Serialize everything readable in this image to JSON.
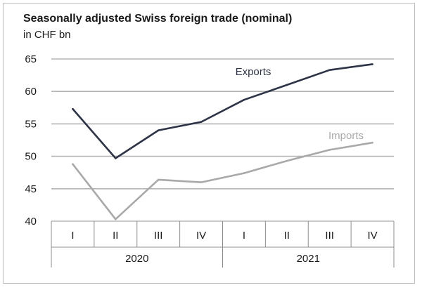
{
  "chart_data": {
    "type": "line",
    "title": "Seasonally adjusted Swiss foreign trade (nominal)",
    "subtitle": "in CHF bn",
    "xlabel": "",
    "ylabel": "",
    "ylim": [
      40,
      65
    ],
    "yticks": [
      40,
      45,
      50,
      55,
      60,
      65
    ],
    "categories": [
      "I",
      "II",
      "III",
      "IV",
      "I",
      "II",
      "III",
      "IV"
    ],
    "groups": [
      {
        "label": "2020",
        "span": 4
      },
      {
        "label": "2021",
        "span": 4
      }
    ],
    "series": [
      {
        "name": "Exports",
        "color": "#2e3447",
        "values": [
          57.3,
          49.7,
          54.0,
          55.3,
          58.7,
          61.0,
          63.3,
          64.2
        ]
      },
      {
        "name": "Imports",
        "color": "#a9a9a9",
        "values": [
          48.8,
          40.3,
          46.4,
          46.0,
          47.4,
          49.3,
          51.0,
          52.1
        ]
      }
    ]
  }
}
